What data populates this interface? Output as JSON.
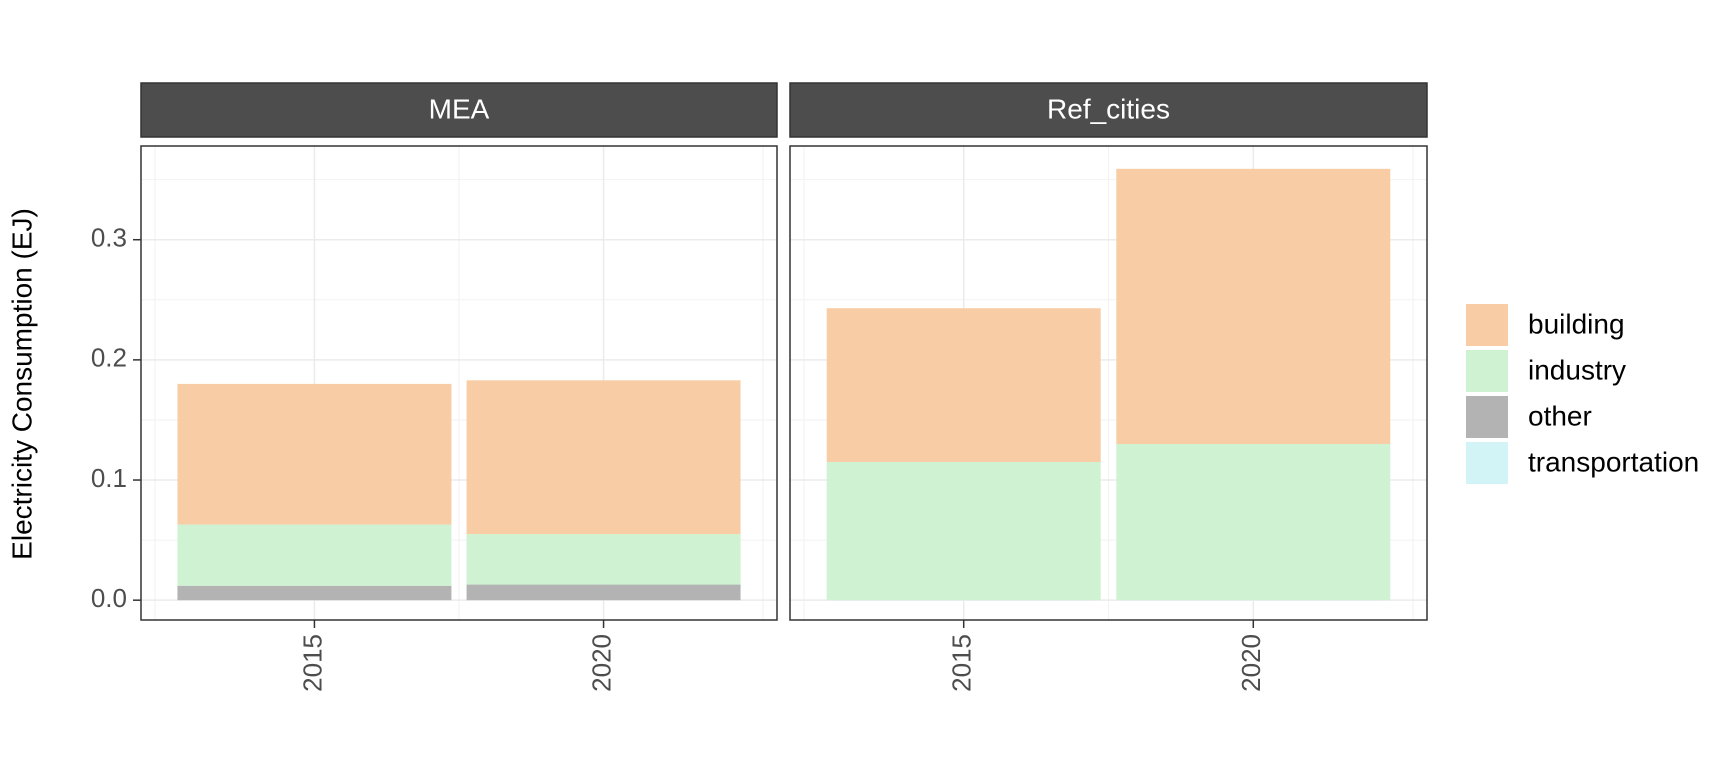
{
  "chart_data": {
    "type": "bar",
    "stacked": true,
    "facets": [
      "MEA",
      "Ref_cities"
    ],
    "categories": [
      "2015",
      "2020"
    ],
    "ylabel": "Electricity Consumption (EJ)",
    "xlabel": "",
    "ylim": [
      -0.0165,
      0.378
    ],
    "yticks": [
      "0.0",
      "0.1",
      "0.2",
      "0.3"
    ],
    "grid": true,
    "legend_position": "right",
    "series": [
      {
        "name": "other",
        "color": "#b3b3b3",
        "values": {
          "MEA": [
            0.012,
            0.013
          ],
          "Ref_cities": [
            0.0,
            0.0
          ]
        }
      },
      {
        "name": "transportation",
        "color": "#d2f4f6",
        "values": {
          "MEA": [
            0.0,
            0.0
          ],
          "Ref_cities": [
            0.0,
            0.0
          ]
        }
      },
      {
        "name": "industry",
        "color": "#cff2d3",
        "values": {
          "MEA": [
            0.051,
            0.042
          ],
          "Ref_cities": [
            0.115,
            0.13
          ]
        }
      },
      {
        "name": "building",
        "color": "#f8cda5",
        "values": {
          "MEA": [
            0.117,
            0.128
          ],
          "Ref_cities": [
            0.128,
            0.229
          ]
        }
      }
    ],
    "legend_order": [
      "building",
      "industry",
      "other",
      "transportation"
    ]
  }
}
